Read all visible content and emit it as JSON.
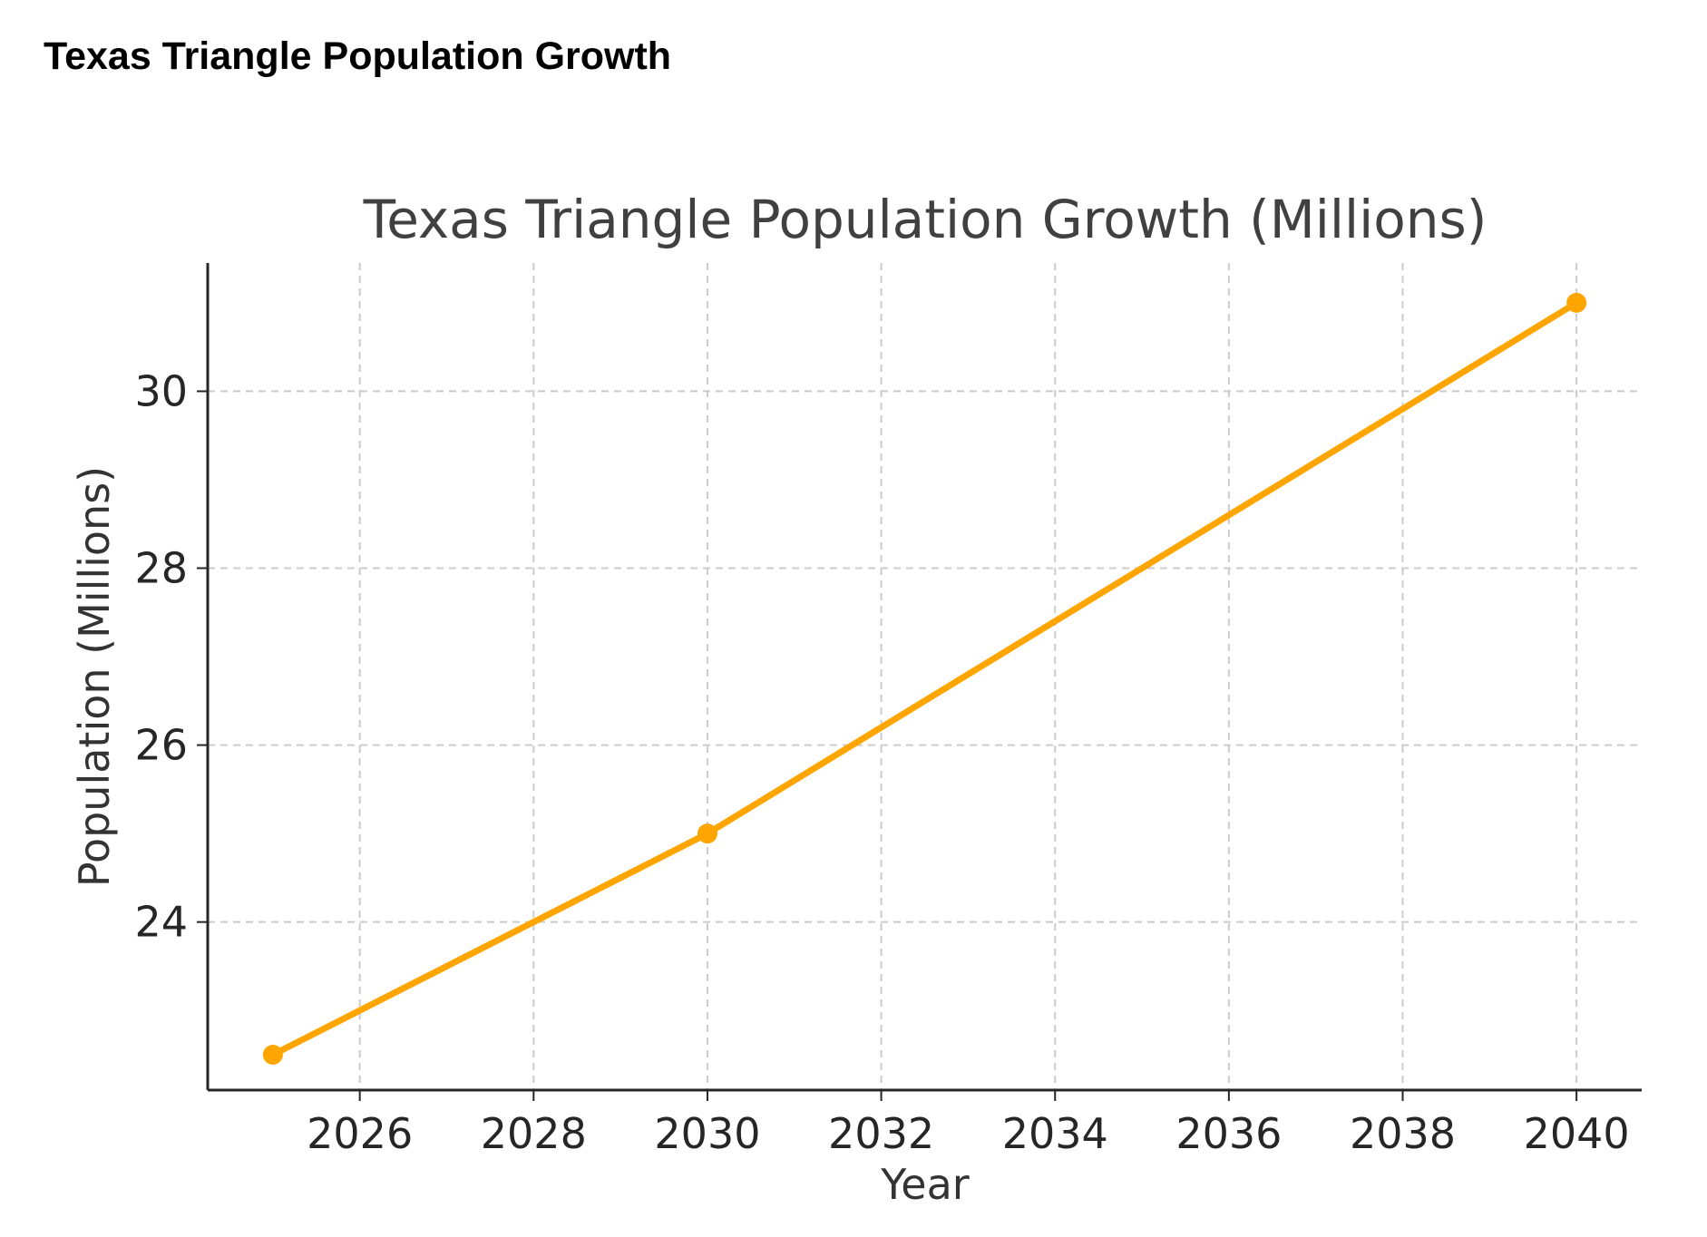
{
  "page": {
    "heading": "Texas Triangle Population Growth"
  },
  "chart_data": {
    "type": "line",
    "title": "Texas Triangle Population Growth (Millions)",
    "xlabel": "Year",
    "ylabel": "Population (Millions)",
    "x": [
      2025,
      2030,
      2040
    ],
    "series": [
      {
        "values": [
          22.5,
          25.0,
          31.0
        ],
        "color": "#FFA500",
        "marker": "circle"
      }
    ],
    "xticks": [
      "2026",
      "2028",
      "2030",
      "2032",
      "2034",
      "2036",
      "2038",
      "2040"
    ],
    "yticks": [
      "24",
      "26",
      "28",
      "30"
    ],
    "xlim": [
      2024.25,
      2040.75
    ],
    "ylim": [
      22.1,
      31.45
    ],
    "grid": true,
    "grid_style": "dashed"
  }
}
